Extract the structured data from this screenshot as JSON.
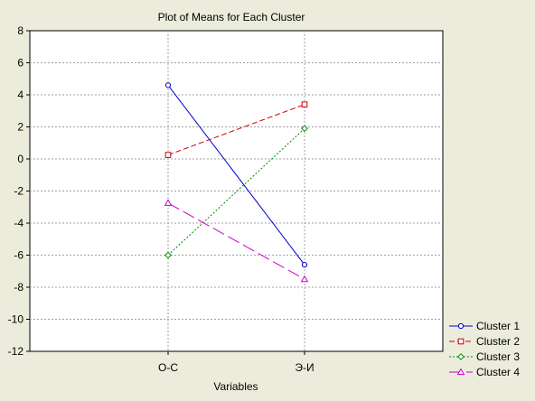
{
  "chart_data": {
    "type": "line",
    "title": "Plot of Means for Each Cluster",
    "xlabel": "Variables",
    "ylabel": "",
    "categories": [
      "О-С",
      "Э-И"
    ],
    "ylim": [
      -12,
      8
    ],
    "yticks": [
      "8",
      "6",
      "4",
      "2",
      "0",
      "-2",
      "-4",
      "-6",
      "-8",
      "-10",
      "-12"
    ],
    "grid": true,
    "legend_position": "bottom-right",
    "series": [
      {
        "name": "Cluster  1",
        "values": [
          4.6,
          -6.6
        ],
        "color": "#0000cc",
        "marker": "circle",
        "dash": "solid"
      },
      {
        "name": "Cluster  2",
        "values": [
          0.25,
          3.4
        ],
        "color": "#cc0000",
        "marker": "square",
        "dash": "dashed"
      },
      {
        "name": "Cluster  3",
        "values": [
          -6.0,
          1.9
        ],
        "color": "#008800",
        "marker": "diamond",
        "dash": "dotted"
      },
      {
        "name": "Cluster  4",
        "values": [
          -2.75,
          -7.5
        ],
        "color": "#cc00cc",
        "marker": "triangle",
        "dash": "longdash"
      }
    ]
  }
}
